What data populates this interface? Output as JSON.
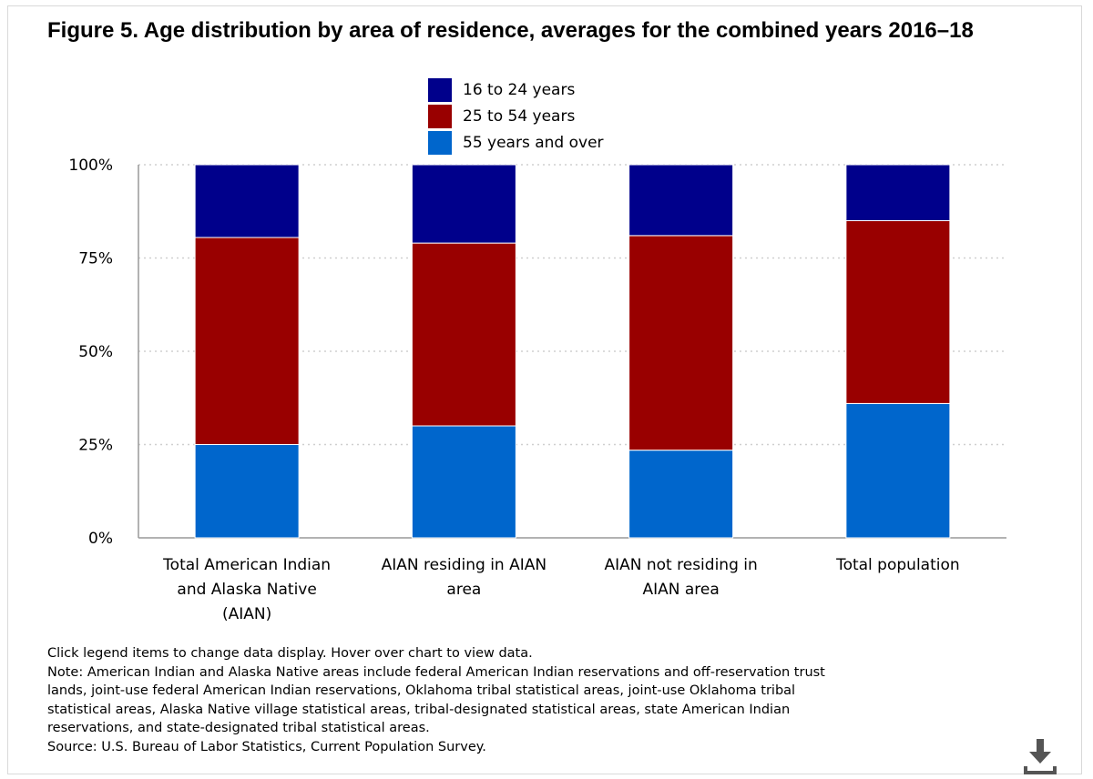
{
  "title": "Figure 5. Age distribution by area of residence, averages for the combined years 2016–18",
  "colors": {
    "s1": "#00008b",
    "s2": "#990000",
    "s3": "#0066cc",
    "grid": "#cfcfcf",
    "axis": "#999999"
  },
  "chart_data": {
    "type": "bar",
    "stacked": true,
    "categories": [
      "Total American Indian and Alaska Native (AIAN)",
      "AIAN residing in AIAN area",
      "AIAN not residing in AIAN area",
      "Total population"
    ],
    "series": [
      {
        "name": "16 to 24 years",
        "values": [
          19.5,
          21,
          19,
          15
        ]
      },
      {
        "name": "25 to 54 years",
        "values": [
          55.5,
          49,
          57.5,
          49
        ]
      },
      {
        "name": "55 years and over",
        "values": [
          25,
          30,
          23.5,
          36
        ]
      }
    ],
    "stack_order_bottom_to_top": [
      "55 years and over",
      "25 to 54 years",
      "16 to 24 years"
    ],
    "yticks": [
      "0%",
      "25%",
      "50%",
      "75%",
      "100%"
    ],
    "ylim": [
      0,
      100
    ],
    "grid": true,
    "legend": "top-center"
  },
  "category_label_lines": [
    [
      "Total American Indian",
      "and Alaska Native",
      "(AIAN)"
    ],
    [
      "AIAN residing in AIAN",
      "area"
    ],
    [
      "AIAN not residing in",
      "AIAN area"
    ],
    [
      "Total population"
    ]
  ],
  "notes": {
    "instruction": "Click legend items to change data display. Hover over chart to view data.",
    "note_lines": [
      "Note: American Indian and Alaska Native areas include federal American Indian reservations and off-reservation trust",
      "lands, joint-use federal American Indian reservations, Oklahoma tribal statistical areas, joint-use Oklahoma tribal",
      "statistical areas, Alaska Native village statistical areas, tribal-designated statistical areas, state American Indian",
      "reservations, and state-designated tribal statistical areas."
    ],
    "source": "Source: U.S. Bureau of Labor Statistics, Current Population Survey."
  },
  "download_icon": "download-icon"
}
